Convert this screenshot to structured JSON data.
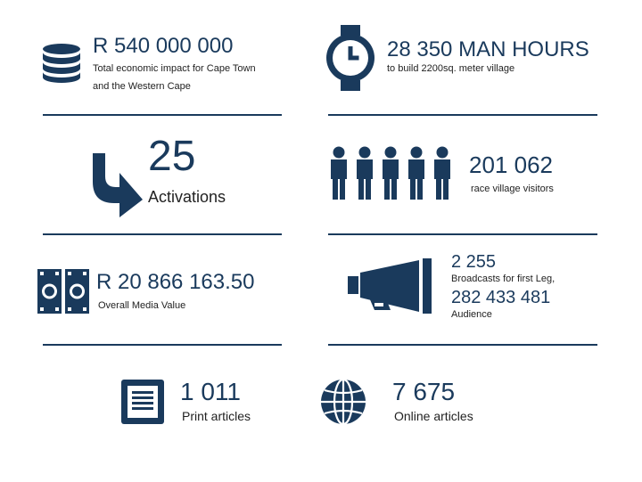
{
  "colors": {
    "navy": "#1a3a5c",
    "text": "#222222",
    "background": "#ffffff"
  },
  "stats": {
    "economic": {
      "icon": "database-icon",
      "value": "R 540 000 000",
      "line1": "Total economic impact for Cape Town",
      "line2": "and the Western Cape"
    },
    "manhours": {
      "icon": "clock-icon",
      "value": "28 350 MAN HOURS",
      "caption": "to build 2200sq. meter village"
    },
    "activations": {
      "icon": "curved-arrow-icon",
      "value": "25",
      "caption": "Activations"
    },
    "visitors": {
      "icon": "people-icon",
      "value": "201 062",
      "caption": "race village visitors"
    },
    "media": {
      "icon": "film-strip-icon",
      "value": "R 20 866 163.50",
      "caption": "Overall Media Value"
    },
    "broadcasts": {
      "icon": "megaphone-icon",
      "value": "2 255",
      "caption": "Broadcasts for first Leg,",
      "audience_value": "282 433 481",
      "audience_caption": "Audience"
    },
    "print": {
      "icon": "document-icon",
      "value": "1 011",
      "caption": "Print articles"
    },
    "online": {
      "icon": "globe-icon",
      "value": "7 675",
      "caption": "Online articles"
    }
  }
}
